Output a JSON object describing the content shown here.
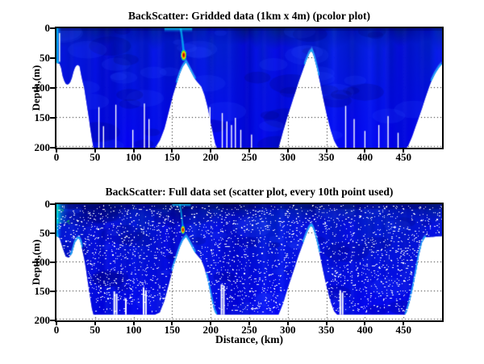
{
  "figure": {
    "background": "#ffffff"
  },
  "colors": {
    "axis": "#000000",
    "grid_dots": "#111111",
    "deep_blue": "#0000cc",
    "bright_blue": "#1530ff",
    "navy": "#000087",
    "cyan": "#00ccff",
    "green": "#33cc33",
    "yellow": "#eeee00",
    "orange": "#ff9900",
    "red": "#990000",
    "no_data": "#ffffff"
  },
  "chart_data": [
    {
      "type": "pcolor",
      "title": "BackScatter: Gridded data (1km x 4m) (pcolor plot)",
      "xlabel": "",
      "ylabel": "Depth,(m)",
      "xlim": [
        0,
        500
      ],
      "ylim": [
        0,
        200
      ],
      "y_reversed": true,
      "xticks": [
        0,
        50,
        100,
        150,
        200,
        250,
        300,
        350,
        400,
        450
      ],
      "yticks": [
        0,
        50,
        100,
        150,
        200
      ],
      "grid": "dotted",
      "colormap": "jet",
      "data_floor_depth": 200,
      "bottom_profile": [
        [
          0,
          58
        ],
        [
          5,
          60
        ],
        [
          8,
          80
        ],
        [
          11,
          92
        ],
        [
          15,
          95
        ],
        [
          19,
          88
        ],
        [
          23,
          68
        ],
        [
          27,
          60
        ],
        [
          30,
          64
        ],
        [
          33,
          85
        ],
        [
          36,
          100
        ],
        [
          39,
          125
        ],
        [
          42,
          150
        ],
        [
          45,
          178
        ],
        [
          48,
          200
        ],
        [
          128,
          200
        ],
        [
          134,
          188
        ],
        [
          140,
          168
        ],
        [
          146,
          138
        ],
        [
          151,
          112
        ],
        [
          156,
          92
        ],
        [
          160,
          76
        ],
        [
          164,
          64
        ],
        [
          168,
          57
        ],
        [
          171,
          64
        ],
        [
          175,
          74
        ],
        [
          179,
          84
        ],
        [
          184,
          92
        ],
        [
          188,
          98
        ],
        [
          192,
          112
        ],
        [
          196,
          132
        ],
        [
          200,
          158
        ],
        [
          204,
          182
        ],
        [
          207,
          200
        ],
        [
          288,
          200
        ],
        [
          294,
          172
        ],
        [
          299,
          150
        ],
        [
          304,
          130
        ],
        [
          309,
          110
        ],
        [
          314,
          90
        ],
        [
          319,
          72
        ],
        [
          324,
          54
        ],
        [
          328,
          42
        ],
        [
          331,
          37
        ],
        [
          334,
          48
        ],
        [
          338,
          68
        ],
        [
          342,
          92
        ],
        [
          346,
          118
        ],
        [
          350,
          142
        ],
        [
          355,
          168
        ],
        [
          360,
          188
        ],
        [
          365,
          200
        ],
        [
          455,
          200
        ],
        [
          461,
          182
        ],
        [
          467,
          160
        ],
        [
          473,
          138
        ],
        [
          479,
          114
        ],
        [
          485,
          92
        ],
        [
          491,
          76
        ],
        [
          496,
          66
        ],
        [
          500,
          60
        ]
      ],
      "gaps": [
        [
          4,
          8,
          56
        ],
        [
          55,
          132
        ],
        [
          61,
          164
        ],
        [
          77,
          128
        ],
        [
          99,
          170
        ],
        [
          114,
          126
        ],
        [
          120,
          152
        ],
        [
          199,
          132
        ],
        [
          215,
          142
        ],
        [
          221,
          156
        ],
        [
          227,
          162
        ],
        [
          232,
          150
        ],
        [
          239,
          170
        ],
        [
          253,
          178
        ],
        [
          320,
          170
        ],
        [
          375,
          130
        ],
        [
          386,
          152
        ],
        [
          400,
          172
        ],
        [
          418,
          162
        ],
        [
          430,
          147
        ],
        [
          443,
          175
        ]
      ],
      "cyan_edges": [
        [
          0,
          3
        ],
        [
          156,
          180
        ],
        [
          322,
          340
        ],
        [
          486,
          500
        ]
      ],
      "left_edge_band": {
        "x2": 2.5,
        "depth": 58
      },
      "hotspot": {
        "x": 165,
        "depth": 45,
        "rx_km": 4,
        "ry_m": 10
      },
      "plume": {
        "x_top": 161,
        "x_core": 165,
        "depth": 40
      },
      "surface_smear": {
        "x1": 140,
        "x2": 176,
        "depth": 7
      },
      "speckles": null,
      "green_patch": null
    },
    {
      "type": "scatter",
      "title": "BackScatter: Full data set (scatter plot, every 10th point used)",
      "xlabel": "Distance, (km)",
      "ylabel": "Depth,(m)",
      "xlim": [
        0,
        500
      ],
      "ylim": [
        0,
        200
      ],
      "y_reversed": true,
      "xticks": [
        0,
        50,
        100,
        150,
        200,
        250,
        300,
        350,
        400,
        450
      ],
      "yticks": [
        0,
        50,
        100,
        150,
        200
      ],
      "grid": "dotted",
      "colormap": "jet",
      "data_floor_depth": 190,
      "bottom_profile": [
        [
          0,
          55
        ],
        [
          4,
          58
        ],
        [
          8,
          75
        ],
        [
          12,
          90
        ],
        [
          16,
          92
        ],
        [
          20,
          85
        ],
        [
          24,
          66
        ],
        [
          28,
          58
        ],
        [
          31,
          62
        ],
        [
          34,
          82
        ],
        [
          37,
          100
        ],
        [
          40,
          128
        ],
        [
          43,
          155
        ],
        [
          46,
          180
        ],
        [
          48,
          190
        ],
        [
          128,
          190
        ],
        [
          134,
          186
        ],
        [
          140,
          166
        ],
        [
          146,
          136
        ],
        [
          151,
          110
        ],
        [
          156,
          90
        ],
        [
          160,
          74
        ],
        [
          164,
          62
        ],
        [
          168,
          56
        ],
        [
          171,
          62
        ],
        [
          175,
          72
        ],
        [
          179,
          82
        ],
        [
          184,
          90
        ],
        [
          188,
          96
        ],
        [
          192,
          110
        ],
        [
          196,
          130
        ],
        [
          200,
          156
        ],
        [
          204,
          180
        ],
        [
          207,
          190
        ],
        [
          288,
          190
        ],
        [
          294,
          170
        ],
        [
          299,
          148
        ],
        [
          304,
          128
        ],
        [
          309,
          108
        ],
        [
          314,
          88
        ],
        [
          319,
          70
        ],
        [
          324,
          52
        ],
        [
          328,
          40
        ],
        [
          331,
          36
        ],
        [
          334,
          46
        ],
        [
          338,
          66
        ],
        [
          342,
          90
        ],
        [
          346,
          116
        ],
        [
          350,
          140
        ],
        [
          355,
          166
        ],
        [
          360,
          184
        ],
        [
          364,
          190
        ],
        [
          453,
          190
        ],
        [
          458,
          168
        ],
        [
          462,
          145
        ],
        [
          466,
          118
        ],
        [
          470,
          88
        ],
        [
          474,
          66
        ],
        [
          478,
          57
        ],
        [
          500,
          55
        ]
      ],
      "gaps": [
        [
          75,
          150
        ],
        [
          78,
          154
        ],
        [
          90,
          162
        ],
        [
          113,
          143
        ],
        [
          116,
          148
        ],
        [
          214,
          138
        ],
        [
          217,
          140
        ],
        [
          368,
          148
        ],
        [
          371,
          152
        ]
      ],
      "cyan_edges": [
        [
          0,
          3
        ],
        [
          18,
          34
        ],
        [
          150,
          180
        ],
        [
          194,
          208
        ],
        [
          320,
          342
        ],
        [
          452,
          480
        ]
      ],
      "left_edge_band": {
        "x2": 2.5,
        "depth": 55
      },
      "hotspot": {
        "x": 164,
        "depth": 44,
        "rx_km": 3,
        "ry_m": 8
      },
      "plume": {
        "x_top": 160,
        "x_core": 164,
        "depth": 40
      },
      "surface_smear": {
        "x1": 150,
        "x2": 174,
        "depth": 5
      },
      "speckles": {
        "count": 3200,
        "color": "#ffffff"
      },
      "green_patch": {
        "x1": 0,
        "x2": 16,
        "d2": 33
      }
    }
  ]
}
